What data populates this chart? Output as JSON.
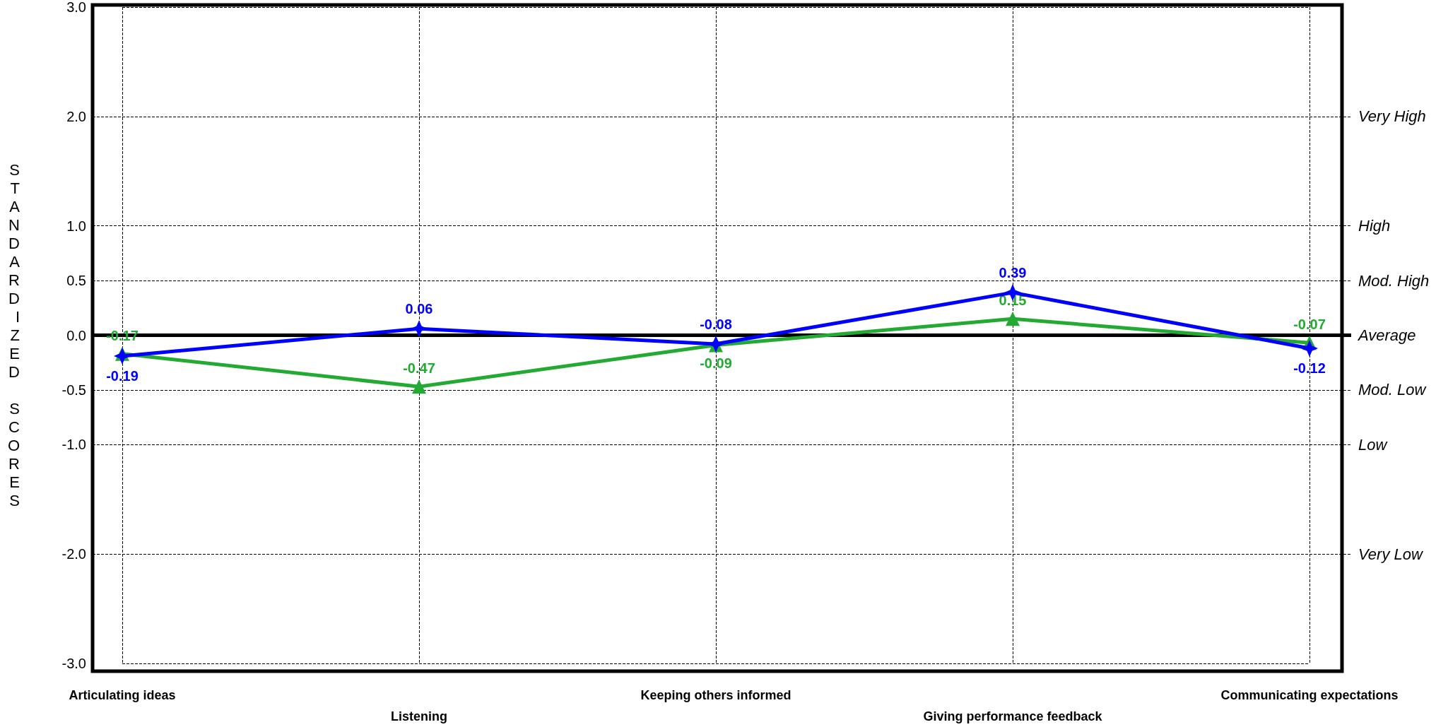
{
  "chart_data": {
    "type": "line",
    "ylabel": "STANDARDIZED SCORES",
    "categories": [
      "Articulating ideas",
      "Listening",
      "Keeping others informed",
      "Giving performance feedback",
      "Communicating expectations"
    ],
    "series": [
      {
        "color": "#0000ff",
        "marker": "star",
        "values": [
          -0.19,
          0.06,
          -0.08,
          0.39,
          -0.12
        ]
      },
      {
        "color": "#22aa33",
        "marker": "triangle",
        "values": [
          -0.17,
          -0.47,
          -0.09,
          0.15,
          -0.07
        ]
      }
    ],
    "ylim": [
      -3,
      3
    ],
    "yticks": [
      {
        "value": -3,
        "label": "-3.0"
      },
      {
        "value": -2,
        "label": "-2.0"
      },
      {
        "value": -1,
        "label": "-1.0"
      },
      {
        "value": -0.5,
        "label": "-0.5"
      },
      {
        "value": 0,
        "label": "0.0"
      },
      {
        "value": 0.5,
        "label": "0.5"
      },
      {
        "value": 1,
        "label": "1.0"
      },
      {
        "value": 2,
        "label": "2.0"
      },
      {
        "value": 3,
        "label": "3.0"
      }
    ],
    "ref_lines": [
      {
        "axis": "y",
        "value": 2,
        "label": "Very High",
        "color": "#000000",
        "line_style": "dashed"
      },
      {
        "axis": "y",
        "value": 1,
        "label": "High",
        "color": "#000000",
        "line_style": "dashed"
      },
      {
        "axis": "y",
        "value": 0.5,
        "label": "Mod. High",
        "color": "#000000",
        "line_style": "dashed"
      },
      {
        "axis": "y",
        "value": 0,
        "label": "Average",
        "color": "#000000",
        "line_style": "solid"
      },
      {
        "axis": "y",
        "value": -0.5,
        "label": "Mod. Low",
        "color": "#000000",
        "line_style": "dashed"
      },
      {
        "axis": "y",
        "value": -1,
        "label": "Low",
        "color": "#000000",
        "line_style": "dashed"
      },
      {
        "axis": "y",
        "value": -2,
        "label": "Very Low",
        "color": "#000000",
        "line_style": "dashed"
      }
    ],
    "grid": true,
    "data_labels": true,
    "line_style": "solid"
  }
}
